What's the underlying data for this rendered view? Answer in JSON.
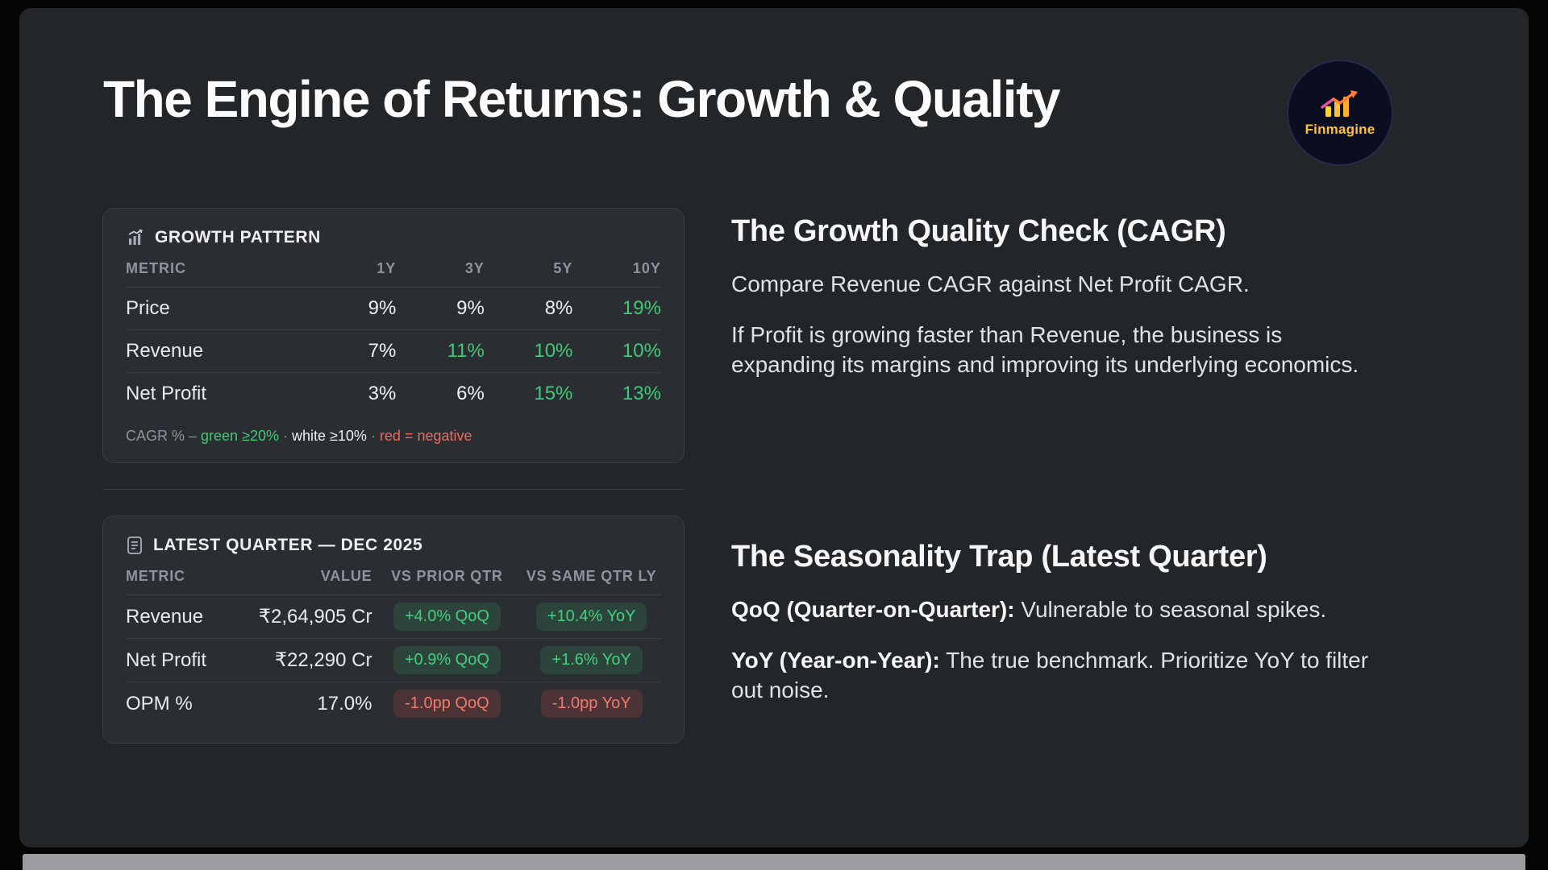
{
  "title": "The Engine of Returns: Growth & Quality",
  "logo": {
    "text": "Finmagine"
  },
  "colors": {
    "green": "#41c977",
    "red": "#ef6a60",
    "accent_yellow": "#ffc23a"
  },
  "growth_card": {
    "title": "GROWTH PATTERN",
    "columns": [
      "METRIC",
      "1Y",
      "3Y",
      "5Y",
      "10Y"
    ],
    "rows": [
      {
        "metric": "Price",
        "cells": [
          {
            "t": "9%",
            "c": "white"
          },
          {
            "t": "9%",
            "c": "white"
          },
          {
            "t": "8%",
            "c": "white"
          },
          {
            "t": "19%",
            "c": "green"
          }
        ]
      },
      {
        "metric": "Revenue",
        "cells": [
          {
            "t": "7%",
            "c": "white"
          },
          {
            "t": "11%",
            "c": "green"
          },
          {
            "t": "10%",
            "c": "green"
          },
          {
            "t": "10%",
            "c": "green"
          }
        ]
      },
      {
        "metric": "Net Profit",
        "cells": [
          {
            "t": "3%",
            "c": "white"
          },
          {
            "t": "6%",
            "c": "white"
          },
          {
            "t": "15%",
            "c": "green"
          },
          {
            "t": "13%",
            "c": "green"
          }
        ]
      }
    ],
    "legend": [
      {
        "t": "CAGR % – ",
        "c": "muted"
      },
      {
        "t": "green ≥20%",
        "c": "green"
      },
      {
        "t": " · ",
        "c": "muted"
      },
      {
        "t": "white ≥10%",
        "c": "white"
      },
      {
        "t": " · ",
        "c": "muted"
      },
      {
        "t": "red = negative",
        "c": "red"
      }
    ]
  },
  "quarter_card": {
    "title": "LATEST QUARTER — DEC 2025",
    "columns": [
      "METRIC",
      "VALUE",
      "VS PRIOR QTR",
      "VS SAME QTR LY"
    ],
    "rows": [
      {
        "metric": "Revenue",
        "value": "₹2,64,905 Cr",
        "prior": {
          "t": "+4.0% QoQ",
          "c": "green"
        },
        "yoy": {
          "t": "+10.4% YoY",
          "c": "green"
        }
      },
      {
        "metric": "Net Profit",
        "value": "₹22,290 Cr",
        "prior": {
          "t": "+0.9% QoQ",
          "c": "green"
        },
        "yoy": {
          "t": "+1.6% YoY",
          "c": "green"
        }
      },
      {
        "metric": "OPM %",
        "value": "17.0%",
        "prior": {
          "t": "-1.0pp QoQ",
          "c": "red"
        },
        "yoy": {
          "t": "-1.0pp YoY",
          "c": "red"
        }
      }
    ]
  },
  "right": {
    "growth": {
      "heading": "The Growth Quality Check (CAGR)",
      "paragraphs": [
        {
          "lead": "",
          "rest": "Compare Revenue CAGR against Net Profit CAGR."
        },
        {
          "lead": "",
          "rest": "If Profit is growing faster than Revenue, the business is expanding its margins and improving its underlying economics."
        }
      ]
    },
    "seasonality": {
      "heading": "The Seasonality Trap (Latest Quarter)",
      "paragraphs": [
        {
          "lead": "QoQ (Quarter-on-Quarter):",
          "rest": " Vulnerable to seasonal spikes."
        },
        {
          "lead": "YoY (Year-on-Year):",
          "rest": " The true benchmark. Prioritize YoY to filter out noise."
        }
      ]
    }
  }
}
